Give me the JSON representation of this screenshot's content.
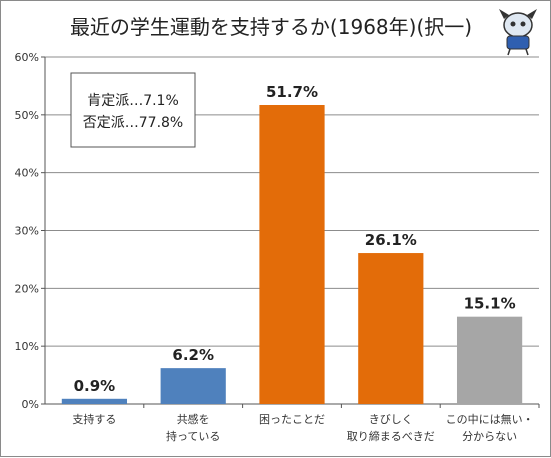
{
  "chart_data": {
    "type": "bar",
    "title": "最近の学生運動を支持するか(1968年)(択一)",
    "categories": [
      [
        "支持する"
      ],
      [
        "共感を",
        "持っている"
      ],
      [
        "困ったことだ"
      ],
      [
        "きびしく",
        "取り締まるべきだ"
      ],
      [
        "この中には無い・",
        "分からない"
      ]
    ],
    "values": [
      0.9,
      6.2,
      51.7,
      26.1,
      15.1
    ],
    "value_labels": [
      "0.9%",
      "6.2%",
      "51.7%",
      "26.1%",
      "15.1%"
    ],
    "bar_colors": [
      "#4f81bd",
      "#4f81bd",
      "#e36c09",
      "#e36c09",
      "#a6a6a6"
    ],
    "ylim": [
      0,
      60
    ],
    "yticks": [
      "0%",
      "10%",
      "20%",
      "30%",
      "40%",
      "50%",
      "60%"
    ],
    "ytick_values": [
      0,
      10,
      20,
      30,
      40,
      50,
      60
    ],
    "grid": true,
    "annotation_lines": [
      "肯定派…7.1%",
      "否定派…77.8%"
    ]
  },
  "mascot_icon": "mascot-icon"
}
